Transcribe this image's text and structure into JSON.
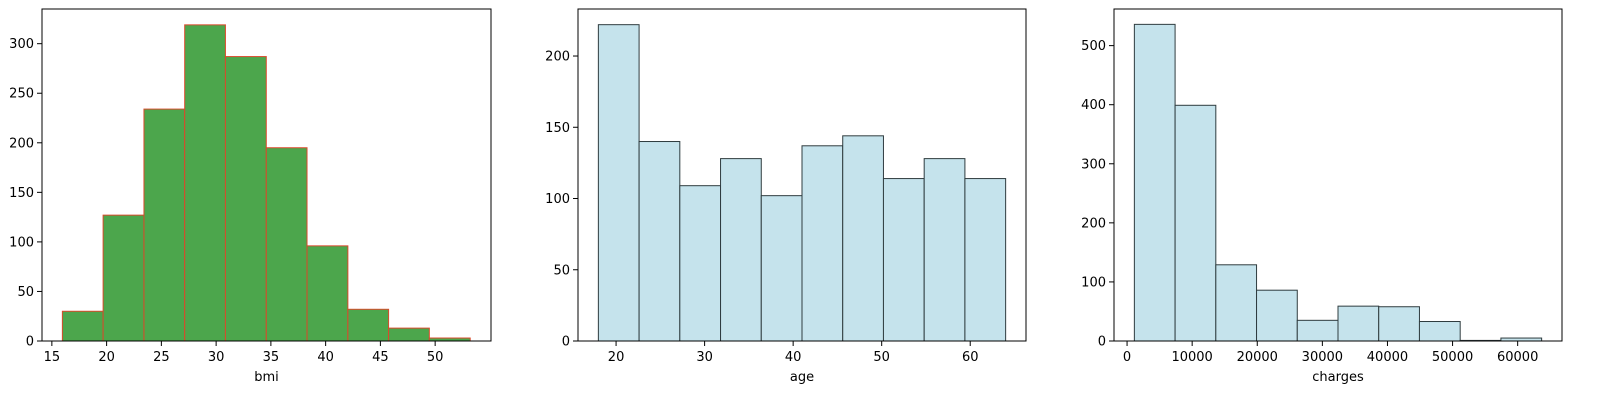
{
  "chart_data": [
    {
      "type": "bar",
      "xlabel": "bmi",
      "ylabel": "",
      "title": "",
      "bin_edges": [
        15.96,
        19.68,
        23.41,
        27.13,
        30.85,
        34.58,
        38.3,
        42.03,
        45.75,
        49.47,
        53.2
      ],
      "values": [
        30,
        127,
        234,
        319,
        287,
        195,
        96,
        32,
        13,
        3
      ],
      "xlim": [
        14.1,
        55.1
      ],
      "ylim": [
        0,
        335
      ],
      "xticks": [
        15,
        20,
        25,
        30,
        35,
        40,
        45,
        50
      ],
      "yticks": [
        0,
        50,
        100,
        150,
        200,
        250,
        300
      ],
      "colors": {
        "fill": "#4ca64c",
        "edge": "#d84a2b"
      }
    },
    {
      "type": "bar",
      "xlabel": "age",
      "ylabel": "",
      "title": "",
      "bin_edges": [
        18,
        22.6,
        27.2,
        31.8,
        36.4,
        41,
        45.6,
        50.2,
        54.8,
        59.4,
        64
      ],
      "values": [
        222,
        140,
        109,
        128,
        102,
        137,
        144,
        114,
        128,
        114
      ],
      "xlim": [
        15.7,
        66.3
      ],
      "ylim": [
        0,
        233
      ],
      "xticks": [
        20,
        30,
        40,
        50,
        60
      ],
      "yticks": [
        0,
        50,
        100,
        150,
        200
      ],
      "colors": {
        "fill": "#c5e3ec",
        "edge": "#2f3c3f"
      }
    },
    {
      "type": "bar",
      "xlabel": "charges",
      "ylabel": "",
      "title": "",
      "bin_edges": [
        1122,
        7378,
        13634,
        19890,
        26146,
        32402,
        38658,
        44914,
        51170,
        57426,
        63682
      ],
      "values": [
        536,
        399,
        129,
        86,
        35,
        59,
        58,
        33,
        1,
        5
      ],
      "xlim": [
        -2006,
        66810
      ],
      "ylim": [
        0,
        562
      ],
      "xticks": [
        0,
        10000,
        20000,
        30000,
        40000,
        50000,
        60000
      ],
      "yticks": [
        0,
        100,
        200,
        300,
        400,
        500
      ],
      "colors": {
        "fill": "#c5e3ec",
        "edge": "#2f3c3f"
      }
    }
  ]
}
